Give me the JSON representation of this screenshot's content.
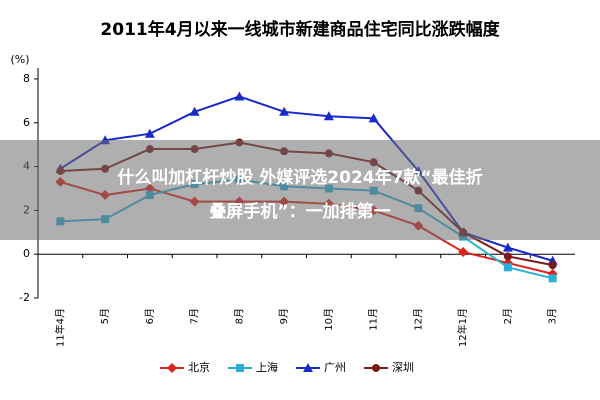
{
  "chart_data": {
    "type": "line",
    "title": "2011年4月以来一线城市新建商品住宅同比涨跌幅度",
    "y_label": "(%)",
    "categories": [
      "11年4月",
      "5月",
      "6月",
      "7月",
      "8月",
      "9月",
      "10月",
      "11月",
      "12月",
      "12年1月",
      "2月",
      "3月"
    ],
    "series": [
      {
        "name": "北京",
        "color": "#e0221a",
        "marker": "diamond",
        "values": [
          3.3,
          2.7,
          3.0,
          2.4,
          2.4,
          2.4,
          2.3,
          2.0,
          1.3,
          0.1,
          -0.4,
          -0.9
        ]
      },
      {
        "name": "上海",
        "color": "#2ab0d8",
        "marker": "square",
        "values": [
          1.5,
          1.6,
          2.7,
          3.2,
          3.4,
          3.1,
          3.0,
          2.9,
          2.1,
          0.8,
          -0.6,
          -1.1
        ]
      },
      {
        "name": "广州",
        "color": "#1a2ac8",
        "marker": "triangle",
        "values": [
          3.9,
          5.2,
          5.5,
          6.5,
          7.2,
          6.5,
          6.3,
          6.2,
          3.8,
          1.0,
          0.3,
          -0.3
        ]
      },
      {
        "name": "深圳",
        "color": "#7a1a1a",
        "marker": "circle",
        "values": [
          3.8,
          3.9,
          4.8,
          4.8,
          5.1,
          4.7,
          4.6,
          4.2,
          2.9,
          1.0,
          -0.1,
          -0.5
        ]
      }
    ],
    "ylim": [
      -2,
      8.5
    ],
    "yticks": [
      -2,
      0,
      2,
      4,
      6,
      8
    ],
    "legend": "bottom"
  },
  "banner": [
    "什么叫加杠杆炒股 外媒评选2024年7款“最佳折",
    "叠屏手机”：一加排第一"
  ]
}
